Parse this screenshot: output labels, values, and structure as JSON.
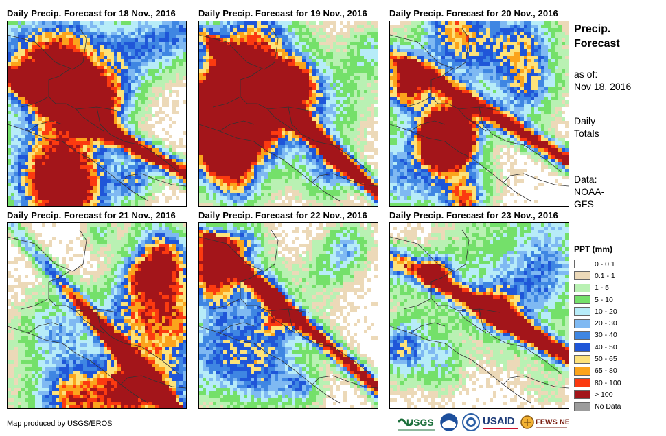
{
  "panels": [
    {
      "title": "Daily Precip. Forecast for 18 Nov., 2016",
      "seed": 11
    },
    {
      "title": "Daily Precip. Forecast for 19 Nov., 2016",
      "seed": 23
    },
    {
      "title": "Daily Precip. Forecast for 20 Nov., 2016",
      "seed": 37
    },
    {
      "title": "Daily Precip. Forecast for 21 Nov., 2016",
      "seed": 41
    },
    {
      "title": "Daily Precip. Forecast for 22 Nov., 2016",
      "seed": 53
    },
    {
      "title": "Daily Precip. Forecast for 23 Nov., 2016",
      "seed": 67
    }
  ],
  "sidebar": {
    "title_line1": "Precip.",
    "title_line2": "Forecast",
    "asof_line1": "as of:",
    "asof_line2": "Nov 18, 2016",
    "daily_line1": "Daily",
    "daily_line2": "Totals",
    "data_line1": "Data:",
    "data_line2": "NOAA-",
    "data_line3": "GFS"
  },
  "legend": {
    "title": "PPT (mm)",
    "items": [
      {
        "label": "0 - 0.1",
        "color": "#ffffff"
      },
      {
        "label": "0.1 - 1",
        "color": "#ecd9b8"
      },
      {
        "label": "1 - 5",
        "color": "#b9f1b3"
      },
      {
        "label": "5 - 10",
        "color": "#74e06a"
      },
      {
        "label": "10 - 20",
        "color": "#b7ecf8"
      },
      {
        "label": "20 - 30",
        "color": "#7fb9f2"
      },
      {
        "label": "30 - 40",
        "color": "#3f86e2"
      },
      {
        "label": "40 - 50",
        "color": "#1f56d8"
      },
      {
        "label": "50 - 65",
        "color": "#fde27a"
      },
      {
        "label": "65 - 80",
        "color": "#fba41c"
      },
      {
        "label": "80 - 100",
        "color": "#fb3a10"
      },
      {
        "label": "> 100",
        "color": "#a3151a"
      },
      {
        "label": "No Data",
        "color": "#9c9c9c"
      }
    ]
  },
  "credit": "Map produced by USGS/EROS",
  "logos": {
    "usgs": "USGS",
    "usaid": "USAID",
    "fewsnet": "FEWS NET"
  }
}
